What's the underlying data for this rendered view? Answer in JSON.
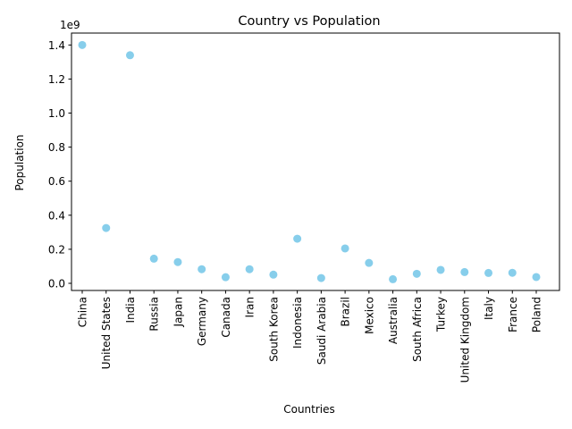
{
  "chart_data": {
    "type": "scatter",
    "title": "Country vs Population",
    "xlabel": "Countries",
    "ylabel": "Population",
    "y_offset_label": "1e9",
    "y_scale": 1000000000,
    "ylim": [
      -0.042,
      1.47
    ],
    "yticks": [
      0.0,
      0.2,
      0.4,
      0.6,
      0.8,
      1.0,
      1.2,
      1.4
    ],
    "ytick_labels": [
      "0.0",
      "0.2",
      "0.4",
      "0.6",
      "0.8",
      "1.0",
      "1.2",
      "1.4"
    ],
    "grid": false,
    "marker_color": "#87ceeb",
    "categories": [
      "China",
      "United States",
      "India",
      "Russia",
      "Japan",
      "Germany",
      "Canada",
      "Iran",
      "South Korea",
      "Indonesia",
      "Saudi Arabia",
      "Brazil",
      "Mexico",
      "Australia",
      "South Africa",
      "Turkey",
      "United Kingdom",
      "Italy",
      "France",
      "Poland"
    ],
    "values": [
      1400000000,
      325000000,
      1340000000,
      145000000,
      125000000,
      83000000,
      36000000,
      83000000,
      51000000,
      262000000,
      31000000,
      205000000,
      120000000,
      24000000,
      56000000,
      79000000,
      66000000,
      61000000,
      62000000,
      37000000
    ]
  }
}
